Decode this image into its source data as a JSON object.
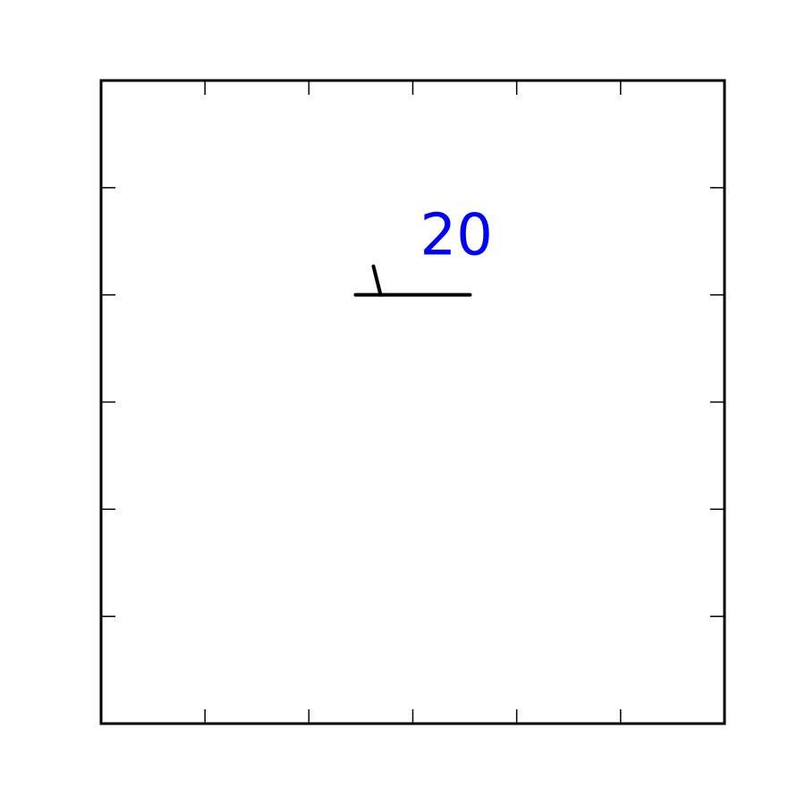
{
  "chart_data": {
    "type": "scatter",
    "title": "",
    "xlabel": "",
    "ylabel": "",
    "xlim": [
      0,
      6
    ],
    "ylim": [
      0,
      6
    ],
    "x_ticks": [
      1,
      2,
      3,
      4,
      5
    ],
    "y_ticks": [
      1,
      2,
      3,
      4,
      5
    ],
    "grid": false,
    "stations": [
      {
        "x": 3,
        "y": 4,
        "label": "20",
        "label_color": "#0000ff",
        "wind_barb": {
          "u": 5,
          "v": 0,
          "half_barbs": 1
        }
      }
    ]
  }
}
